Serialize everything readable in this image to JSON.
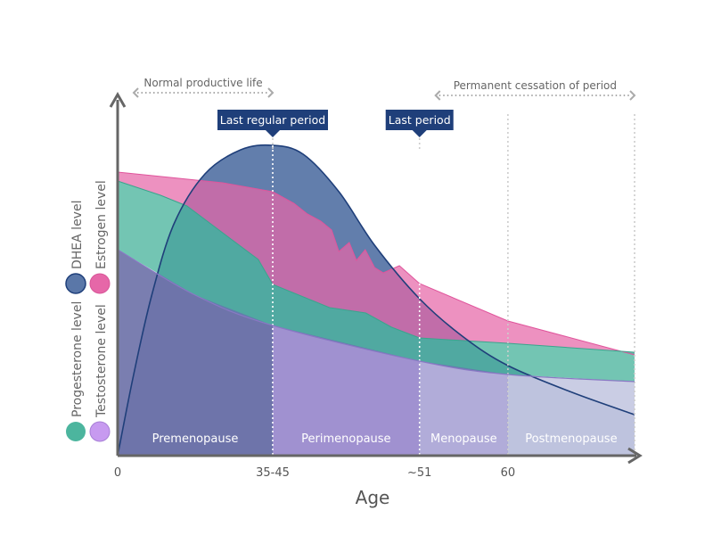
{
  "chart_data": {
    "type": "area",
    "title": "",
    "xlabel": "Age",
    "ylabel": "",
    "x_note": "timeline position 0-100 (x axis is not linear in age)",
    "y_note": "relative hormone level 0-100, no numeric axis shown",
    "xticks": [
      {
        "t": 0,
        "label": "0"
      },
      {
        "t": 30,
        "label": "35-45"
      },
      {
        "t": 58.4,
        "label": "~51"
      },
      {
        "t": 75.5,
        "label": "60"
      }
    ],
    "phases": [
      {
        "label": "Premenopause",
        "from": 0,
        "to": 30,
        "color": "#6f73a9"
      },
      {
        "label": "Perimenopause",
        "from": 30,
        "to": 58.4,
        "color": "#a592d2"
      },
      {
        "label": "Menopause",
        "from": 58.4,
        "to": 75.5,
        "color": "#b7b0dc"
      },
      {
        "label": "Postmenopause",
        "from": 75.5,
        "to": 100,
        "color": "#c6c9e2"
      }
    ],
    "dividers": [
      30,
      58.4,
      75.5,
      100
    ],
    "markers": [
      {
        "label": "Last regular period",
        "t": 30
      },
      {
        "label": "Last period",
        "t": 58.4
      }
    ],
    "spans": [
      {
        "label": "Normal productive life",
        "from": 0,
        "to": 30
      },
      {
        "label": "Permanent cessation of period",
        "from": 58.4,
        "to": 100
      }
    ],
    "legend": [
      {
        "label": "DHEA level",
        "color": "#5a77a8"
      },
      {
        "label": "Estrogen level",
        "color": "#e667a8"
      },
      {
        "label": "Progesterone level",
        "color": "#4cb59e"
      },
      {
        "label": "Testosterone level",
        "color": "#c79af0"
      }
    ],
    "legend_placement": "left",
    "series": [
      {
        "name": "Testosterone level",
        "points": [
          [
            0,
            57.75
          ],
          [
            15,
            45
          ],
          [
            30,
            36.5
          ],
          [
            58.4,
            26.5
          ],
          [
            75.5,
            22.75
          ],
          [
            100,
            20.75
          ]
        ]
      },
      {
        "name": "Progesterone level",
        "points": [
          [
            0,
            77
          ],
          [
            8.3,
            73
          ],
          [
            13.4,
            70
          ],
          [
            27.2,
            55
          ],
          [
            30,
            48
          ],
          [
            41,
            41.5
          ],
          [
            48,
            40
          ],
          [
            53,
            36
          ],
          [
            58.4,
            33
          ],
          [
            75.5,
            31.5
          ],
          [
            100,
            29
          ]
        ]
      },
      {
        "name": "Estrogen level",
        "points": [
          [
            0,
            79.5
          ],
          [
            20.3,
            76.5
          ],
          [
            30,
            74
          ],
          [
            34.1,
            70.75
          ],
          [
            36.7,
            67.75
          ],
          [
            39.3,
            65.75
          ],
          [
            41.4,
            63.25
          ],
          [
            42.8,
            57.25
          ],
          [
            44.8,
            59.75
          ],
          [
            46.2,
            54.75
          ],
          [
            47.9,
            57.75
          ],
          [
            49.7,
            52.75
          ],
          [
            51.4,
            51.25
          ],
          [
            54.5,
            53.25
          ],
          [
            58.4,
            48.25
          ],
          [
            75.5,
            37.75
          ],
          [
            100,
            28.25
          ]
        ]
      },
      {
        "name": "DHEA level",
        "points": [
          [
            0,
            0
          ],
          [
            3.1,
            22.75
          ],
          [
            6.6,
            45
          ],
          [
            10.9,
            65
          ],
          [
            16.9,
            79
          ],
          [
            23.8,
            85.75
          ],
          [
            30,
            87
          ],
          [
            35.9,
            84.5
          ],
          [
            42.8,
            74
          ],
          [
            49.7,
            59
          ],
          [
            58.4,
            44
          ],
          [
            66.9,
            33.25
          ],
          [
            75.5,
            25.25
          ],
          [
            87.9,
            17.75
          ],
          [
            100,
            11.5
          ]
        ]
      }
    ]
  }
}
